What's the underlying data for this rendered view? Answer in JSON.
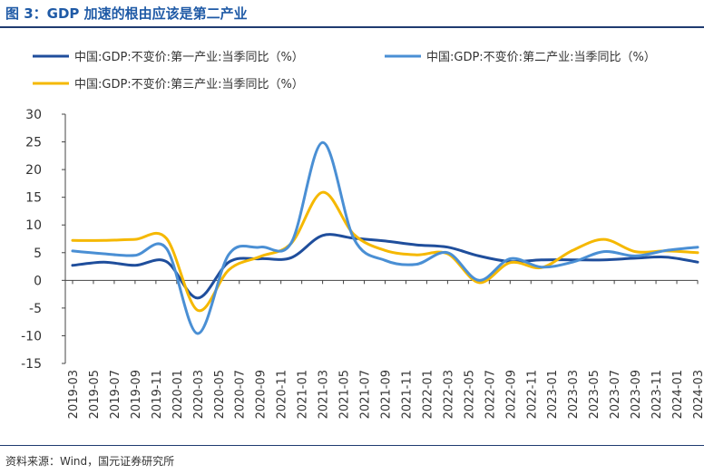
{
  "figure": {
    "title": "图 3：GDP 加速的根由应该是第二产业",
    "source": "资料来源：Wind，国元证券研究所"
  },
  "chart_data": {
    "type": "line",
    "x": [
      "2019-03",
      "2019-06",
      "2019-09",
      "2019-12",
      "2020-03",
      "2020-06",
      "2020-09",
      "2020-12",
      "2021-03",
      "2021-06",
      "2021-09",
      "2021-12",
      "2022-03",
      "2022-06",
      "2022-09",
      "2022-12",
      "2023-03",
      "2023-06",
      "2023-09",
      "2023-12",
      "2024-03"
    ],
    "xticks": [
      "2019-03",
      "2019-05",
      "2019-07",
      "2019-09",
      "2019-11",
      "2020-01",
      "2020-03",
      "2020-05",
      "2020-07",
      "2020-09",
      "2020-11",
      "2021-01",
      "2021-03",
      "2021-05",
      "2021-07",
      "2021-09",
      "2021-11",
      "2022-01",
      "2022-03",
      "2022-05",
      "2022-07",
      "2022-09",
      "2022-11",
      "2023-01",
      "2023-03",
      "2023-05",
      "2023-07",
      "2023-09",
      "2023-11",
      "2024-01",
      "2024-03"
    ],
    "ylim": [
      -15,
      30
    ],
    "yticks": [
      30,
      25,
      20,
      15,
      10,
      5,
      0,
      -5,
      -10,
      -15
    ],
    "series": [
      {
        "name": "中国:GDP:不变价:第一产业:当季同比（%）",
        "color": "#1f4e9c",
        "values": [
          2.7,
          3.3,
          2.7,
          3.4,
          -3.2,
          3.3,
          3.9,
          4.1,
          8.1,
          7.6,
          7.1,
          6.4,
          6.0,
          4.4,
          3.4,
          3.7,
          3.7,
          3.7,
          4.0,
          4.2,
          3.3
        ]
      },
      {
        "name": "中国:GDP:不变价:第二产业:当季同比（%）",
        "color": "#4a8fd4",
        "values": [
          5.3,
          4.8,
          4.5,
          5.8,
          -9.6,
          4.7,
          6.0,
          6.8,
          24.9,
          7.5,
          3.6,
          2.9,
          5.0,
          0.0,
          3.9,
          2.4,
          3.3,
          5.2,
          4.4,
          5.4,
          6.0
        ]
      },
      {
        "name": "中国:GDP:不变价:第三产业:当季同比（%）",
        "color": "#f5b800",
        "values": [
          7.2,
          7.2,
          7.4,
          7.6,
          -5.4,
          1.9,
          4.3,
          6.7,
          15.9,
          8.3,
          5.4,
          4.6,
          4.8,
          -0.4,
          3.2,
          2.3,
          5.4,
          7.4,
          5.2,
          5.3,
          5.0
        ]
      }
    ]
  }
}
